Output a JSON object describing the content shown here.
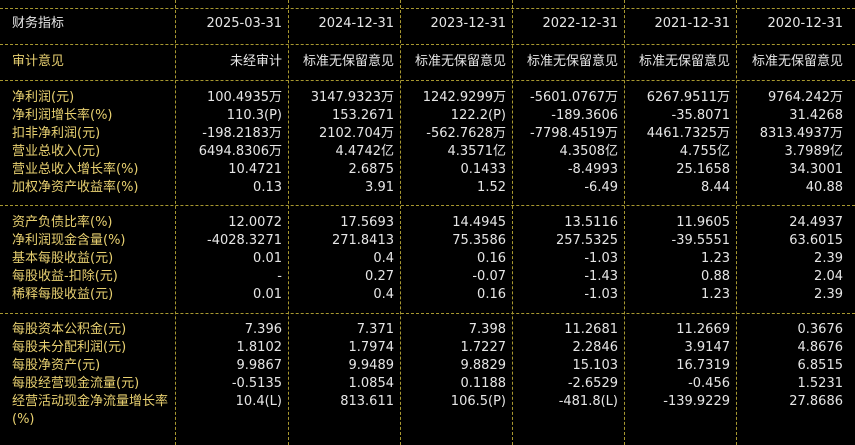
{
  "header": {
    "title": "财务指标",
    "columns": [
      "2025-03-31",
      "2024-12-31",
      "2023-12-31",
      "2022-12-31",
      "2021-12-31",
      "2020-12-31"
    ]
  },
  "audit": {
    "label": "审计意见",
    "values": [
      "未经审计",
      "标准无保留意见",
      "标准无保留意见",
      "标准无保留意见",
      "标准无保留意见",
      "标准无保留意见"
    ]
  },
  "groups": [
    [
      {
        "label": "净利润(元)",
        "values": [
          "100.4935万",
          "3147.9323万",
          "1242.9299万",
          "-5601.0767万",
          "6267.9511万",
          "9764.242万"
        ]
      },
      {
        "label": "净利润增长率(%)",
        "values": [
          "110.3(P)",
          "153.2671",
          "122.2(P)",
          "-189.3606",
          "-35.8071",
          "31.4268"
        ]
      },
      {
        "label": "扣非净利润(元)",
        "values": [
          "-198.2183万",
          "2102.704万",
          "-562.7628万",
          "-7798.4519万",
          "4461.7325万",
          "8313.4937万"
        ]
      },
      {
        "label": "营业总收入(元)",
        "values": [
          "6494.8306万",
          "4.4742亿",
          "4.3571亿",
          "4.3508亿",
          "4.755亿",
          "3.7989亿"
        ]
      },
      {
        "label": "营业总收入增长率(%)",
        "values": [
          "10.4721",
          "2.6875",
          "0.1433",
          "-8.4993",
          "25.1658",
          "34.3001"
        ]
      },
      {
        "label": "加权净资产收益率(%)",
        "values": [
          "0.13",
          "3.91",
          "1.52",
          "-6.49",
          "8.44",
          "40.88"
        ]
      }
    ],
    [
      {
        "label": "资产负债比率(%)",
        "values": [
          "12.0072",
          "17.5693",
          "14.4945",
          "13.5116",
          "11.9605",
          "24.4937"
        ]
      },
      {
        "label": "净利润现金含量(%)",
        "values": [
          "-4028.3271",
          "271.8413",
          "75.3586",
          "257.5325",
          "-39.5551",
          "63.6015"
        ]
      },
      {
        "label": "基本每股收益(元)",
        "values": [
          "0.01",
          "0.4",
          "0.16",
          "-1.03",
          "1.23",
          "2.39"
        ]
      },
      {
        "label": "每股收益-扣除(元)",
        "values": [
          "-",
          "0.27",
          "-0.07",
          "-1.43",
          "0.88",
          "2.04"
        ]
      },
      {
        "label": "稀释每股收益(元)",
        "values": [
          "0.01",
          "0.4",
          "0.16",
          "-1.03",
          "1.23",
          "2.39"
        ]
      }
    ],
    [
      {
        "label": "每股资本公积金(元)",
        "values": [
          "7.396",
          "7.371",
          "7.398",
          "11.2681",
          "11.2669",
          "0.3676"
        ]
      },
      {
        "label": "每股未分配利润(元)",
        "values": [
          "1.8102",
          "1.7974",
          "1.7227",
          "2.2846",
          "3.9147",
          "4.8676"
        ]
      },
      {
        "label": "每股净资产(元)",
        "values": [
          "9.9867",
          "9.9489",
          "9.8829",
          "15.103",
          "16.7319",
          "6.8515"
        ]
      },
      {
        "label": "每股经营现金流量(元)",
        "values": [
          "-0.5135",
          "1.0854",
          "0.1188",
          "-2.6529",
          "-0.456",
          "1.5231"
        ]
      },
      {
        "label": "经营活动现金净流量增长率(%)",
        "values": [
          "10.4(L)",
          "813.611",
          "106.5(P)",
          "-481.8(L)",
          "-139.9229",
          "27.8686"
        ]
      }
    ]
  ]
}
